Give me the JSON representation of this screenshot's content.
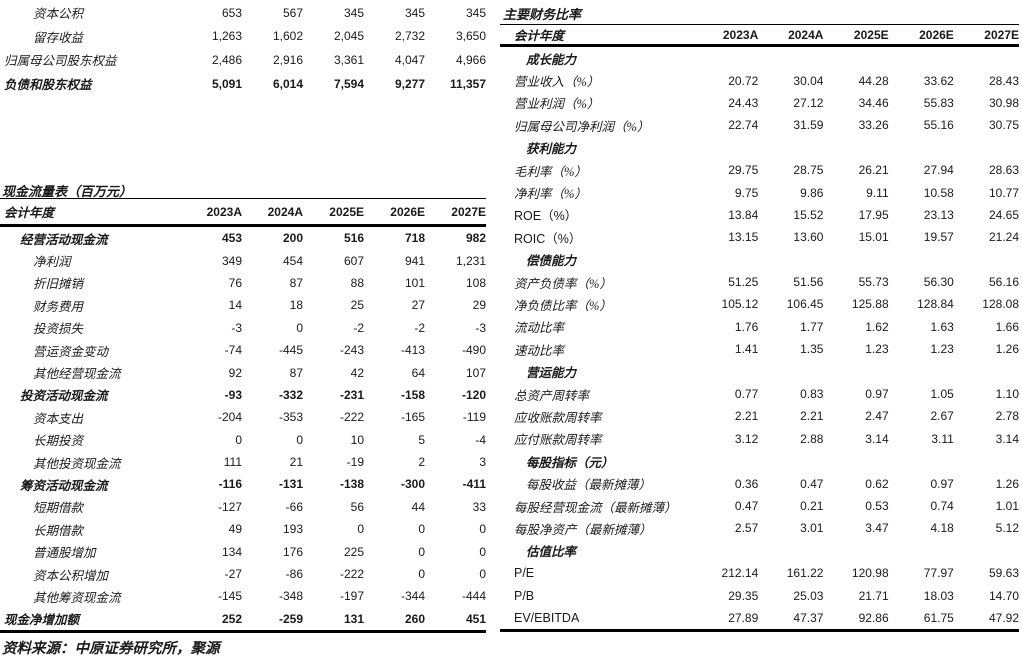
{
  "page": {
    "source_note": "资料来源：中原证券研究所，聚源"
  },
  "colors": {
    "text": "#1a1a1a",
    "rule": "#000000",
    "background": "#ffffff"
  },
  "balance_sheet_fragment": {
    "rows": [
      {
        "label": "资本公积",
        "indent": 2,
        "bold": false,
        "values": [
          "653",
          "567",
          "345",
          "345",
          "345"
        ]
      },
      {
        "label": "留存收益",
        "indent": 2,
        "bold": false,
        "values": [
          "1,263",
          "1,602",
          "2,045",
          "2,732",
          "3,650"
        ]
      },
      {
        "label": "归属母公司股东权益",
        "indent": 0,
        "bold": false,
        "values": [
          "2,486",
          "2,916",
          "3,361",
          "4,047",
          "4,966"
        ]
      },
      {
        "label": "负债和股东权益",
        "indent": 0,
        "bold": true,
        "values": [
          "5,091",
          "6,014",
          "7,594",
          "9,277",
          "11,357"
        ]
      }
    ]
  },
  "cash_flow_table": {
    "title": "现金流量表（百万元）",
    "header_label": "会计年度",
    "columns": [
      "2023A",
      "2024A",
      "2025E",
      "2026E",
      "2027E"
    ],
    "rows": [
      {
        "label": "经营活动现金流",
        "indent": 1,
        "bold": true,
        "values": [
          "453",
          "200",
          "516",
          "718",
          "982"
        ]
      },
      {
        "label": "净利润",
        "indent": 2,
        "bold": false,
        "values": [
          "349",
          "454",
          "607",
          "941",
          "1,231"
        ]
      },
      {
        "label": "折旧摊销",
        "indent": 2,
        "bold": false,
        "values": [
          "76",
          "87",
          "88",
          "101",
          "108"
        ]
      },
      {
        "label": "财务费用",
        "indent": 2,
        "bold": false,
        "values": [
          "14",
          "18",
          "25",
          "27",
          "29"
        ]
      },
      {
        "label": "投资损失",
        "indent": 2,
        "bold": false,
        "values": [
          "-3",
          "0",
          "-2",
          "-2",
          "-3"
        ]
      },
      {
        "label": "营运资金变动",
        "indent": 2,
        "bold": false,
        "values": [
          "-74",
          "-445",
          "-243",
          "-413",
          "-490"
        ]
      },
      {
        "label": "其他经营现金流",
        "indent": 2,
        "bold": false,
        "values": [
          "92",
          "87",
          "42",
          "64",
          "107"
        ]
      },
      {
        "label": "投资活动现金流",
        "indent": 1,
        "bold": true,
        "values": [
          "-93",
          "-332",
          "-231",
          "-158",
          "-120"
        ]
      },
      {
        "label": "资本支出",
        "indent": 2,
        "bold": false,
        "values": [
          "-204",
          "-353",
          "-222",
          "-165",
          "-119"
        ]
      },
      {
        "label": "长期投资",
        "indent": 2,
        "bold": false,
        "values": [
          "0",
          "0",
          "10",
          "5",
          "-4"
        ]
      },
      {
        "label": "其他投资现金流",
        "indent": 2,
        "bold": false,
        "values": [
          "111",
          "21",
          "-19",
          "2",
          "3"
        ]
      },
      {
        "label": "筹资活动现金流",
        "indent": 1,
        "bold": true,
        "values": [
          "-116",
          "-131",
          "-138",
          "-300",
          "-411"
        ]
      },
      {
        "label": "短期借款",
        "indent": 2,
        "bold": false,
        "values": [
          "-127",
          "-66",
          "56",
          "44",
          "33"
        ]
      },
      {
        "label": "长期借款",
        "indent": 2,
        "bold": false,
        "values": [
          "49",
          "193",
          "0",
          "0",
          "0"
        ]
      },
      {
        "label": "普通股增加",
        "indent": 2,
        "bold": false,
        "values": [
          "134",
          "176",
          "225",
          "0",
          "0"
        ]
      },
      {
        "label": "资本公积增加",
        "indent": 2,
        "bold": false,
        "values": [
          "-27",
          "-86",
          "-222",
          "0",
          "0"
        ]
      },
      {
        "label": "其他筹资现金流",
        "indent": 2,
        "bold": false,
        "values": [
          "-145",
          "-348",
          "-197",
          "-344",
          "-444"
        ]
      },
      {
        "label": "现金净增加额",
        "indent": 0,
        "bold": true,
        "values": [
          "252",
          "-259",
          "131",
          "260",
          "451"
        ]
      }
    ]
  },
  "financial_ratios_table": {
    "title": "主要财务比率",
    "header_label": "会计年度",
    "columns": [
      "2023A",
      "2024A",
      "2025E",
      "2026E",
      "2027E"
    ],
    "rows": [
      {
        "label": "成长能力",
        "indent": 1,
        "bold": true,
        "values": []
      },
      {
        "label": "营业收入（%）",
        "indent": 0,
        "bold": false,
        "values": [
          "20.72",
          "30.04",
          "44.28",
          "33.62",
          "28.43"
        ]
      },
      {
        "label": "营业利润（%）",
        "indent": 0,
        "bold": false,
        "values": [
          "24.43",
          "27.12",
          "34.46",
          "55.83",
          "30.98"
        ]
      },
      {
        "label": "归属母公司净利润（%）",
        "indent": 0,
        "bold": false,
        "values": [
          "22.74",
          "31.59",
          "33.26",
          "55.16",
          "30.75"
        ]
      },
      {
        "label": "获利能力",
        "indent": 1,
        "bold": true,
        "values": []
      },
      {
        "label": "毛利率（%）",
        "indent": 0,
        "bold": false,
        "values": [
          "29.75",
          "28.75",
          "26.21",
          "27.94",
          "28.63"
        ]
      },
      {
        "label": "净利率（%）",
        "indent": 0,
        "bold": false,
        "values": [
          "9.75",
          "9.86",
          "9.11",
          "10.58",
          "10.77"
        ]
      },
      {
        "label": "ROE（%）",
        "indent": 0,
        "bold": false,
        "values": [
          "13.84",
          "15.52",
          "17.95",
          "23.13",
          "24.65"
        ]
      },
      {
        "label": "ROIC（%）",
        "indent": 0,
        "bold": false,
        "values": [
          "13.15",
          "13.60",
          "15.01",
          "19.57",
          "21.24"
        ]
      },
      {
        "label": "偿债能力",
        "indent": 1,
        "bold": true,
        "values": []
      },
      {
        "label": "资产负债率（%）",
        "indent": 0,
        "bold": false,
        "values": [
          "51.25",
          "51.56",
          "55.73",
          "56.30",
          "56.16"
        ]
      },
      {
        "label": "净负债比率（%）",
        "indent": 0,
        "bold": false,
        "values": [
          "105.12",
          "106.45",
          "125.88",
          "128.84",
          "128.08"
        ]
      },
      {
        "label": "流动比率",
        "indent": 0,
        "bold": false,
        "values": [
          "1.76",
          "1.77",
          "1.62",
          "1.63",
          "1.66"
        ]
      },
      {
        "label": "速动比率",
        "indent": 0,
        "bold": false,
        "values": [
          "1.41",
          "1.35",
          "1.23",
          "1.23",
          "1.26"
        ]
      },
      {
        "label": "营运能力",
        "indent": 1,
        "bold": true,
        "values": []
      },
      {
        "label": "总资产周转率",
        "indent": 0,
        "bold": false,
        "values": [
          "0.77",
          "0.83",
          "0.97",
          "1.05",
          "1.10"
        ]
      },
      {
        "label": "应收账款周转率",
        "indent": 0,
        "bold": false,
        "values": [
          "2.21",
          "2.21",
          "2.47",
          "2.67",
          "2.78"
        ]
      },
      {
        "label": "应付账款周转率",
        "indent": 0,
        "bold": false,
        "values": [
          "3.12",
          "2.88",
          "3.14",
          "3.11",
          "3.14"
        ]
      },
      {
        "label": "每股指标（元）",
        "indent": 1,
        "bold": true,
        "values": []
      },
      {
        "label": "每股收益（最新摊薄）",
        "indent": 1,
        "bold": false,
        "values": [
          "0.36",
          "0.47",
          "0.62",
          "0.97",
          "1.26"
        ]
      },
      {
        "label": "每股经营现金流（最新摊薄）",
        "indent": 0,
        "bold": false,
        "values": [
          "0.47",
          "0.21",
          "0.53",
          "0.74",
          "1.01"
        ]
      },
      {
        "label": "每股净资产（最新摊薄）",
        "indent": 0,
        "bold": false,
        "values": [
          "2.57",
          "3.01",
          "3.47",
          "4.18",
          "5.12"
        ]
      },
      {
        "label": "估值比率",
        "indent": 1,
        "bold": true,
        "values": []
      },
      {
        "label": "P/E",
        "indent": 0,
        "bold": false,
        "values": [
          "212.14",
          "161.22",
          "120.98",
          "77.97",
          "59.63"
        ]
      },
      {
        "label": "P/B",
        "indent": 0,
        "bold": false,
        "values": [
          "29.35",
          "25.03",
          "21.71",
          "18.03",
          "14.70"
        ]
      },
      {
        "label": "EV/EBITDA",
        "indent": 0,
        "bold": false,
        "values": [
          "27.89",
          "47.37",
          "92.86",
          "61.75",
          "47.92"
        ]
      }
    ]
  }
}
